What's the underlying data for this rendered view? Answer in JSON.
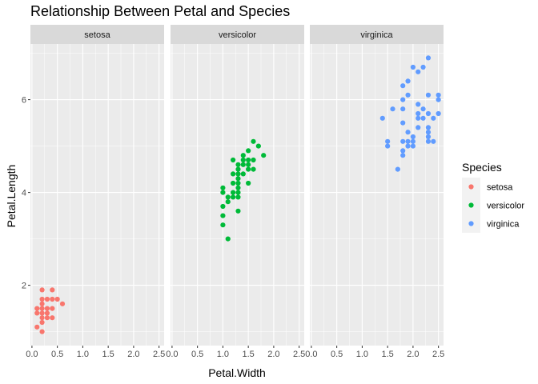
{
  "chart_data": {
    "type": "scatter",
    "title": "Relationship Between Petal and Species",
    "xlabel": "Petal.Width",
    "ylabel": "Petal.Length",
    "xlim": [
      -0.03,
      2.6
    ],
    "ylim": [
      0.7,
      7.2
    ],
    "x_ticks": [
      0.0,
      0.5,
      1.0,
      1.5,
      2.0,
      2.5
    ],
    "x_tick_labels": [
      "0.0",
      "0.5",
      "1.0",
      "1.5",
      "2.0",
      "2.5"
    ],
    "y_ticks": [
      2,
      4,
      6
    ],
    "y_tick_labels": [
      "2",
      "4",
      "6"
    ],
    "grid": true,
    "facet_by": "Species",
    "legend": {
      "title": "Species",
      "position": "right"
    },
    "series": [
      {
        "name": "setosa",
        "color": "#F8766D",
        "points": [
          [
            0.1,
            1.1
          ],
          [
            0.1,
            1.4
          ],
          [
            0.1,
            1.5
          ],
          [
            0.2,
            1.0
          ],
          [
            0.2,
            1.2
          ],
          [
            0.2,
            1.3
          ],
          [
            0.2,
            1.4
          ],
          [
            0.2,
            1.5
          ],
          [
            0.2,
            1.6
          ],
          [
            0.2,
            1.7
          ],
          [
            0.2,
            1.9
          ],
          [
            0.3,
            1.3
          ],
          [
            0.3,
            1.4
          ],
          [
            0.3,
            1.5
          ],
          [
            0.3,
            1.7
          ],
          [
            0.4,
            1.3
          ],
          [
            0.4,
            1.5
          ],
          [
            0.4,
            1.7
          ],
          [
            0.4,
            1.9
          ],
          [
            0.5,
            1.7
          ],
          [
            0.6,
            1.6
          ]
        ]
      },
      {
        "name": "versicolor",
        "color": "#00BA38",
        "points": [
          [
            1.0,
            3.3
          ],
          [
            1.0,
            3.5
          ],
          [
            1.0,
            3.7
          ],
          [
            1.0,
            4.0
          ],
          [
            1.0,
            4.1
          ],
          [
            1.1,
            3.0
          ],
          [
            1.1,
            3.8
          ],
          [
            1.1,
            3.9
          ],
          [
            1.2,
            3.9
          ],
          [
            1.2,
            4.0
          ],
          [
            1.2,
            4.2
          ],
          [
            1.2,
            4.4
          ],
          [
            1.2,
            4.7
          ],
          [
            1.3,
            3.6
          ],
          [
            1.3,
            3.9
          ],
          [
            1.3,
            4.0
          ],
          [
            1.3,
            4.1
          ],
          [
            1.3,
            4.2
          ],
          [
            1.3,
            4.3
          ],
          [
            1.3,
            4.4
          ],
          [
            1.3,
            4.5
          ],
          [
            1.3,
            4.6
          ],
          [
            1.4,
            4.4
          ],
          [
            1.4,
            4.6
          ],
          [
            1.4,
            4.7
          ],
          [
            1.4,
            4.8
          ],
          [
            1.5,
            4.2
          ],
          [
            1.5,
            4.5
          ],
          [
            1.5,
            4.6
          ],
          [
            1.5,
            4.7
          ],
          [
            1.5,
            4.9
          ],
          [
            1.6,
            4.5
          ],
          [
            1.6,
            4.7
          ],
          [
            1.6,
            5.1
          ],
          [
            1.7,
            5.0
          ],
          [
            1.8,
            4.8
          ]
        ]
      },
      {
        "name": "virginica",
        "color": "#619CFF",
        "points": [
          [
            1.4,
            5.6
          ],
          [
            1.5,
            5.0
          ],
          [
            1.5,
            5.1
          ],
          [
            1.6,
            5.8
          ],
          [
            1.7,
            4.5
          ],
          [
            1.8,
            4.8
          ],
          [
            1.8,
            4.9
          ],
          [
            1.8,
            5.1
          ],
          [
            1.8,
            5.5
          ],
          [
            1.8,
            5.8
          ],
          [
            1.8,
            6.0
          ],
          [
            1.8,
            6.3
          ],
          [
            1.9,
            5.0
          ],
          [
            1.9,
            5.1
          ],
          [
            1.9,
            5.3
          ],
          [
            1.9,
            6.1
          ],
          [
            1.9,
            6.4
          ],
          [
            2.0,
            5.0
          ],
          [
            2.0,
            5.1
          ],
          [
            2.0,
            5.2
          ],
          [
            2.0,
            6.7
          ],
          [
            2.1,
            5.4
          ],
          [
            2.1,
            5.6
          ],
          [
            2.1,
            5.7
          ],
          [
            2.1,
            5.9
          ],
          [
            2.1,
            6.6
          ],
          [
            2.2,
            5.6
          ],
          [
            2.2,
            5.8
          ],
          [
            2.2,
            6.7
          ],
          [
            2.3,
            5.1
          ],
          [
            2.3,
            5.2
          ],
          [
            2.3,
            5.3
          ],
          [
            2.3,
            5.4
          ],
          [
            2.3,
            5.7
          ],
          [
            2.3,
            6.1
          ],
          [
            2.3,
            6.9
          ],
          [
            2.4,
            5.1
          ],
          [
            2.4,
            5.6
          ],
          [
            2.5,
            5.7
          ],
          [
            2.5,
            6.0
          ],
          [
            2.5,
            6.1
          ]
        ]
      }
    ]
  },
  "colors": {
    "panel_bg": "#EBEBEB",
    "grid": "#FFFFFF",
    "strip_bg": "#D9D9D9",
    "legend_key_bg": "#F2F2F2"
  }
}
